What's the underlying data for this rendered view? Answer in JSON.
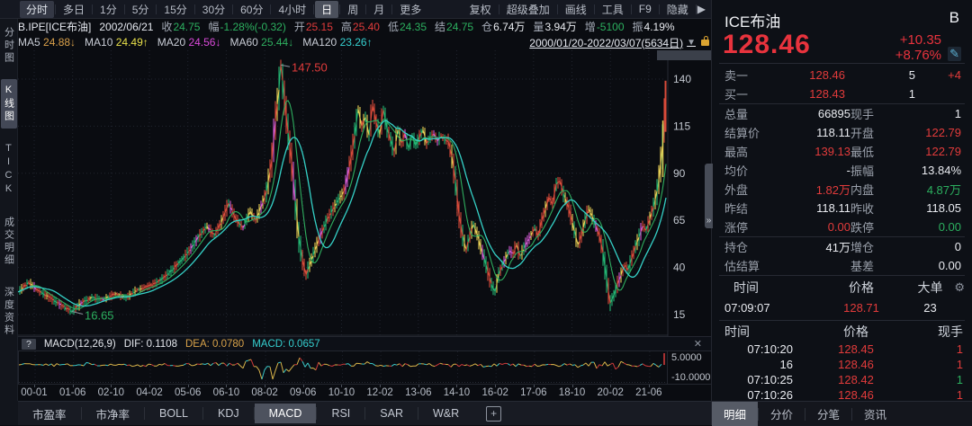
{
  "toolbar": {
    "periods": [
      "分时",
      "多日",
      "1分",
      "5分",
      "15分",
      "30分",
      "60分",
      "4小时",
      "日",
      "周",
      "月",
      "更多"
    ],
    "selected_period": "日",
    "boxed_period": "分时",
    "tools": [
      "复权",
      "超级叠加",
      "画线",
      "工具",
      "F9",
      "隐藏"
    ],
    "expand_icon": "▶"
  },
  "quote_bar": {
    "symbol": "B.IPE[ICE布油]",
    "date": "2002/06/21",
    "fields": [
      {
        "label": "收",
        "value": "24.75",
        "color": "green"
      },
      {
        "label": "幅",
        "value": "-1.28%(-0.32)",
        "color": "green"
      },
      {
        "label": "开",
        "value": "25.15",
        "color": "red"
      },
      {
        "label": "高",
        "value": "25.40",
        "color": "red"
      },
      {
        "label": "低",
        "value": "24.35",
        "color": "green"
      },
      {
        "label": "结",
        "value": "24.75",
        "color": "green"
      },
      {
        "label": "仓",
        "value": "6.74万",
        "color": "white"
      },
      {
        "label": "量",
        "value": "3.94万",
        "color": "white"
      },
      {
        "label": "增",
        "value": "-5100",
        "color": "green"
      },
      {
        "label": "振",
        "value": "4.19%",
        "color": "white"
      }
    ]
  },
  "ma_bar": {
    "items": [
      {
        "label": "MA5",
        "value": "24.88",
        "arrow": "↓",
        "color": "#d9a04a"
      },
      {
        "label": "MA10",
        "value": "24.49",
        "arrow": "↑",
        "color": "#e8e04a"
      },
      {
        "label": "MA20",
        "value": "24.56",
        "arrow": "↓",
        "color": "#d94ad9"
      },
      {
        "label": "MA60",
        "value": "25.44",
        "arrow": "↓",
        "color": "#2fae5f"
      },
      {
        "label": "MA120",
        "value": "23.26",
        "arrow": "↑",
        "color": "#35d1d1"
      }
    ],
    "date_range": "2000/01/20-2022/03/07(5634日)",
    "dropdown_icon": "▼"
  },
  "sidebar": {
    "items": [
      {
        "label": "分时图",
        "selected": false
      },
      {
        "label": "K线图",
        "selected": true
      },
      {
        "label": "TICK",
        "selected": false
      },
      {
        "label": "成交明细",
        "selected": false
      },
      {
        "label": "深度资料",
        "selected": false
      }
    ]
  },
  "chart_data": {
    "type": "candlestick",
    "title": "ICE布油 日K线 2000/01/20-2022/03/07",
    "ylim": [
      15,
      140
    ],
    "y_ticks": [
      140,
      115,
      90,
      65,
      40,
      15
    ],
    "x_ticks": [
      "00-01",
      "01-06",
      "02-10",
      "04-02",
      "05-06",
      "06-10",
      "08-02",
      "09-06",
      "10-10",
      "12-02",
      "13-06",
      "14-10",
      "16-02",
      "17-06",
      "18-10",
      "20-02",
      "21-06"
    ],
    "grid": true,
    "high_annotation": {
      "text": "147.50",
      "price": 147.5,
      "x": 292,
      "color": "#e23b3b"
    },
    "low_annotation": {
      "text": "16.65",
      "price": 16.65,
      "x": 60,
      "color": "#2cb05f"
    },
    "last_high": 139.13,
    "last_close": 128.46,
    "keypoints": [
      [
        0,
        27
      ],
      [
        12,
        32
      ],
      [
        22,
        28
      ],
      [
        35,
        24
      ],
      [
        48,
        20
      ],
      [
        60,
        16.65
      ],
      [
        70,
        21
      ],
      [
        82,
        24
      ],
      [
        95,
        23
      ],
      [
        108,
        26
      ],
      [
        120,
        24
      ],
      [
        132,
        28
      ],
      [
        145,
        30
      ],
      [
        158,
        33
      ],
      [
        170,
        38
      ],
      [
        182,
        44
      ],
      [
        192,
        50
      ],
      [
        202,
        57
      ],
      [
        210,
        62
      ],
      [
        218,
        57
      ],
      [
        226,
        64
      ],
      [
        234,
        74
      ],
      [
        242,
        66
      ],
      [
        250,
        61
      ],
      [
        258,
        70
      ],
      [
        264,
        65
      ],
      [
        270,
        72
      ],
      [
        276,
        80
      ],
      [
        282,
        97
      ],
      [
        286,
        118
      ],
      [
        290,
        135
      ],
      [
        292,
        147.5
      ],
      [
        296,
        130
      ],
      [
        300,
        112
      ],
      [
        304,
        96
      ],
      [
        308,
        76
      ],
      [
        312,
        56
      ],
      [
        316,
        44
      ],
      [
        320,
        36
      ],
      [
        326,
        44
      ],
      [
        332,
        52
      ],
      [
        338,
        59
      ],
      [
        344,
        66
      ],
      [
        350,
        71
      ],
      [
        356,
        76
      ],
      [
        362,
        80
      ],
      [
        366,
        88
      ],
      [
        370,
        98
      ],
      [
        374,
        110
      ],
      [
        378,
        124
      ],
      [
        382,
        115
      ],
      [
        386,
        120
      ],
      [
        390,
        110
      ],
      [
        394,
        126
      ],
      [
        398,
        117
      ],
      [
        402,
        111
      ],
      [
        406,
        124
      ],
      [
        410,
        114
      ],
      [
        414,
        108
      ],
      [
        418,
        101
      ],
      [
        422,
        113
      ],
      [
        426,
        106
      ],
      [
        430,
        111
      ],
      [
        434,
        103
      ],
      [
        438,
        110
      ],
      [
        442,
        105
      ],
      [
        446,
        109
      ],
      [
        450,
        113
      ],
      [
        454,
        106
      ],
      [
        458,
        109
      ],
      [
        462,
        111
      ],
      [
        466,
        107
      ],
      [
        470,
        110
      ],
      [
        474,
        108
      ],
      [
        478,
        107
      ],
      [
        482,
        99
      ],
      [
        486,
        86
      ],
      [
        490,
        68
      ],
      [
        494,
        57
      ],
      [
        498,
        49
      ],
      [
        502,
        57
      ],
      [
        506,
        63
      ],
      [
        510,
        58
      ],
      [
        514,
        51
      ],
      [
        518,
        45
      ],
      [
        522,
        38
      ],
      [
        526,
        31
      ],
      [
        530,
        27
      ],
      [
        534,
        36
      ],
      [
        538,
        41
      ],
      [
        542,
        45
      ],
      [
        546,
        49
      ],
      [
        550,
        47
      ],
      [
        554,
        52
      ],
      [
        558,
        46
      ],
      [
        562,
        50
      ],
      [
        566,
        54
      ],
      [
        570,
        57
      ],
      [
        574,
        61
      ],
      [
        578,
        57
      ],
      [
        582,
        65
      ],
      [
        586,
        71
      ],
      [
        590,
        77
      ],
      [
        594,
        74
      ],
      [
        598,
        84
      ],
      [
        602,
        86
      ],
      [
        606,
        79
      ],
      [
        610,
        74
      ],
      [
        614,
        68
      ],
      [
        618,
        60
      ],
      [
        622,
        52
      ],
      [
        626,
        57
      ],
      [
        630,
        65
      ],
      [
        634,
        71
      ],
      [
        638,
        67
      ],
      [
        642,
        62
      ],
      [
        646,
        57
      ],
      [
        650,
        48
      ],
      [
        654,
        34
      ],
      [
        658,
        21
      ],
      [
        662,
        25
      ],
      [
        666,
        31
      ],
      [
        670,
        36
      ],
      [
        674,
        41
      ],
      [
        678,
        39
      ],
      [
        682,
        45
      ],
      [
        686,
        51
      ],
      [
        690,
        56
      ],
      [
        694,
        62
      ],
      [
        698,
        60
      ],
      [
        702,
        66
      ],
      [
        706,
        72
      ],
      [
        710,
        80
      ],
      [
        713,
        90
      ],
      [
        716,
        104
      ],
      [
        718,
        118
      ],
      [
        720,
        128.5
      ]
    ]
  },
  "macd": {
    "help_icon": "?",
    "title": "MACD(12,26,9)",
    "dif": "DIF: 0.1108",
    "dea": "DEA: 0.0780",
    "macd": "MACD: 0.0657",
    "close_icon": "✕",
    "axis_labels": [
      "5.0000",
      "-10.0000"
    ],
    "ylim": [
      -10,
      5
    ]
  },
  "indicator_tabs": {
    "items": [
      "市盈率",
      "市净率",
      "BOLL",
      "KDJ",
      "MACD",
      "RSI",
      "SAR",
      "W&R"
    ],
    "selected": "MACD",
    "add_icon": "+"
  },
  "right_panel": {
    "name": "ICE布油",
    "flag": "B",
    "last_price": "128.46",
    "change": "+10.35",
    "change_pct": "+8.76%",
    "edit_icon": "✎",
    "collapse_icon": "»",
    "book": [
      {
        "label": "卖一",
        "price": "128.46",
        "vol": "5",
        "extra": "+4"
      },
      {
        "label": "买一",
        "price": "128.43",
        "vol": "1",
        "extra": ""
      }
    ],
    "stats": [
      [
        {
          "label": "总量",
          "value": "66895",
          "color": "white"
        },
        {
          "label": "现手",
          "value": "1",
          "color": "white"
        }
      ],
      [
        {
          "label": "结算价",
          "value": "118.11",
          "color": "white"
        },
        {
          "label": "开盘",
          "value": "122.79",
          "color": "red"
        }
      ],
      [
        {
          "label": "最高",
          "value": "139.13",
          "color": "red"
        },
        {
          "label": "最低",
          "value": "122.79",
          "color": "red"
        }
      ],
      [
        {
          "label": "均价",
          "value": "-",
          "color": "white"
        },
        {
          "label": "振幅",
          "value": "13.84%",
          "color": "white"
        }
      ],
      [
        {
          "label": "外盘",
          "value": "1.82万",
          "color": "red"
        },
        {
          "label": "内盘",
          "value": "4.87万",
          "color": "green"
        }
      ],
      [
        {
          "label": "昨结",
          "value": "118.11",
          "color": "white"
        },
        {
          "label": "昨收",
          "value": "118.05",
          "color": "white"
        }
      ],
      [
        {
          "label": "涨停",
          "value": "0.00",
          "color": "red"
        },
        {
          "label": "跌停",
          "value": "0.00",
          "color": "green"
        }
      ]
    ],
    "position_rows": [
      [
        {
          "label": "持仓",
          "value": "41万",
          "color": "white"
        },
        {
          "label": "增仓",
          "value": "0",
          "color": "white"
        }
      ],
      [
        {
          "label": "估结算",
          "value": "",
          "color": "white"
        },
        {
          "label": "基差",
          "value": "0.00",
          "color": "white"
        }
      ]
    ],
    "big_order": {
      "headers": [
        "时间",
        "价格",
        "大单"
      ],
      "gear_icon": "⚙",
      "rows": [
        {
          "time": "07:09:07",
          "price": "128.71",
          "price_color": "red",
          "qty": "23"
        }
      ]
    },
    "ticks": {
      "headers": [
        "时间",
        "价格",
        "现手"
      ],
      "rows": [
        {
          "time": "07:10:20",
          "price": "128.45",
          "price_color": "red",
          "qty": "1",
          "qty_color": "red"
        },
        {
          "time": "16",
          "price": "128.46",
          "price_color": "red",
          "qty": "1",
          "qty_color": "red"
        },
        {
          "time": "07:10:25",
          "price": "128.42",
          "price_color": "red",
          "qty": "1",
          "qty_color": "green"
        },
        {
          "time": "07:10:26",
          "price": "128.46",
          "price_color": "red",
          "qty": "1",
          "qty_color": "red"
        }
      ]
    },
    "tabs": [
      "明细",
      "分价",
      "分笔",
      "资讯"
    ],
    "selected_tab": "明细"
  }
}
